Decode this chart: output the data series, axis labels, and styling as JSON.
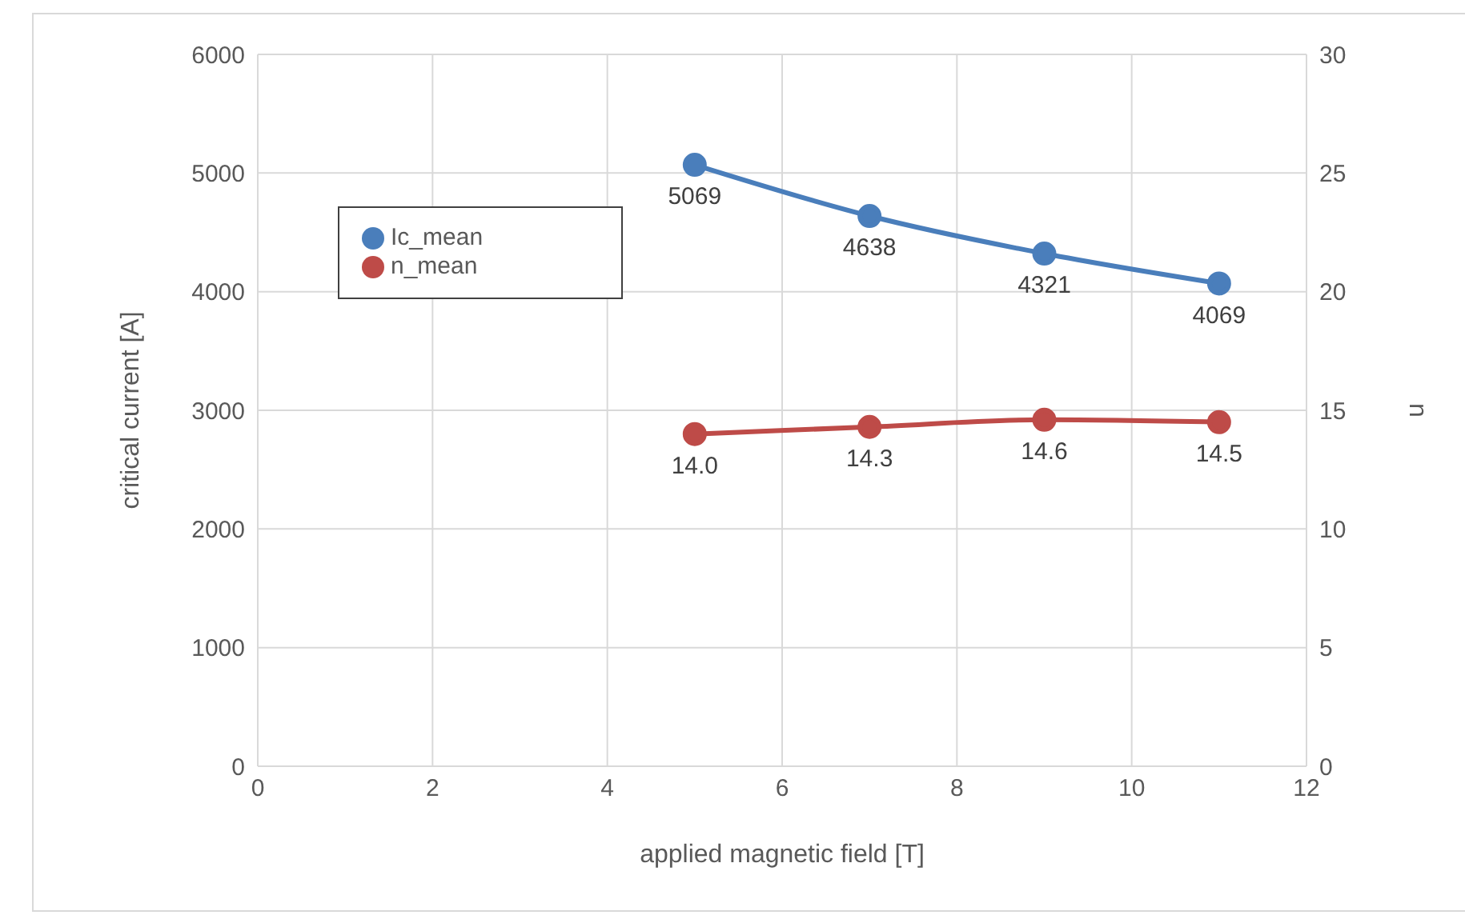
{
  "chart_data": {
    "type": "line",
    "xlabel": "applied magnetic field [T]",
    "ylabel": "critical current [A]",
    "y2label": "n",
    "x": [
      5,
      7,
      9,
      11
    ],
    "series": [
      {
        "name": "Ic_mean",
        "color": "#4a7ebb",
        "values": [
          5069,
          4638,
          4321,
          4069
        ]
      },
      {
        "name": "n_mean",
        "color": "#be4b48",
        "values": [
          14.0,
          14.3,
          14.6,
          14.5
        ],
        "axis": "y2",
        "value_labels": [
          "14.0",
          "14.3",
          "14.6",
          "14.5"
        ]
      }
    ],
    "xlim": [
      0,
      12
    ],
    "xticks": [
      0,
      2,
      4,
      6,
      8,
      10,
      12
    ],
    "ylim": [
      0,
      6000
    ],
    "yticks": [
      0,
      1000,
      2000,
      3000,
      4000,
      5000,
      6000
    ],
    "y2lim": [
      0,
      30
    ],
    "y2ticks": [
      0,
      5,
      10,
      15,
      20,
      25,
      30
    ],
    "data_labels": true,
    "grid": true,
    "legend": "top left",
    "marker": "circle",
    "line_style": "solid"
  }
}
